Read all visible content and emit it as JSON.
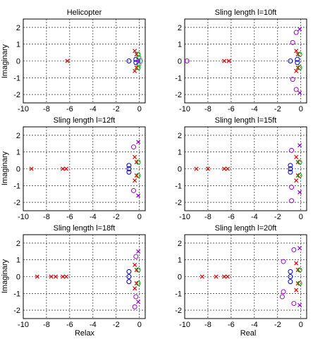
{
  "figure": {
    "y_axis_label": "Imaginary",
    "x_axis_labels": [
      "Relax",
      "Real"
    ]
  },
  "chart_data": [
    {
      "type": "scatter",
      "title": "Helicopter",
      "xlabel": "",
      "ylabel": "Imaginary",
      "xlim": [
        -10,
        0.5
      ],
      "ylim": [
        -2.5,
        2.5
      ],
      "xticks": [
        -10,
        -8,
        -6,
        -4,
        -2,
        0
      ],
      "yticks": [
        -2,
        -1,
        0,
        1,
        2
      ],
      "grid": true,
      "series": [
        {
          "marker": "x",
          "color": "#dd0000",
          "points": [
            [
              -6.2,
              0
            ],
            [
              -0.25,
              0.4
            ],
            [
              -0.25,
              -0.4
            ],
            [
              -0.4,
              0.6
            ],
            [
              -0.4,
              -0.6
            ]
          ]
        },
        {
          "marker": "o",
          "color": "#0000cc",
          "points": [
            [
              -0.9,
              0
            ],
            [
              -0.3,
              0.1
            ],
            [
              -0.3,
              -0.1
            ]
          ]
        },
        {
          "marker": "o",
          "color": "#00aa00",
          "points": [
            [
              -0.1,
              0.4
            ],
            [
              -0.1,
              -0.4
            ],
            [
              -0.05,
              0.2
            ],
            [
              -0.05,
              -0.2
            ]
          ]
        },
        {
          "marker": "x",
          "color": "#9900cc",
          "points": [
            [
              -0.1,
              0.05
            ],
            [
              -0.1,
              -0.05
            ]
          ]
        },
        {
          "marker": "s",
          "color": "#00aacc",
          "points": [
            [
              0.05,
              0
            ]
          ]
        }
      ]
    },
    {
      "type": "scatter",
      "title": "Sling length l=10ft",
      "xlabel": "",
      "ylabel": "",
      "xlim": [
        -10,
        0.5
      ],
      "ylim": [
        -2.5,
        2.5
      ],
      "xticks": [
        -10,
        -8,
        -6,
        -4,
        -2,
        0
      ],
      "yticks": [
        -2,
        -1,
        0,
        1,
        2
      ],
      "grid": true,
      "series": [
        {
          "marker": "x",
          "color": "#dd0000",
          "points": [
            [
              -6.6,
              0
            ],
            [
              -6.2,
              0
            ],
            [
              -0.25,
              0.4
            ],
            [
              -0.25,
              -0.4
            ],
            [
              -0.4,
              0.6
            ],
            [
              -0.4,
              -0.6
            ]
          ]
        },
        {
          "marker": "o",
          "color": "#0000cc",
          "points": [
            [
              -0.9,
              0
            ],
            [
              -0.3,
              0.1
            ],
            [
              -0.3,
              -0.1
            ]
          ]
        },
        {
          "marker": "o",
          "color": "#00aa00",
          "points": [
            [
              -0.1,
              0.4
            ],
            [
              -0.1,
              -0.4
            ]
          ]
        },
        {
          "marker": "x",
          "color": "#9900cc",
          "points": [
            [
              -0.1,
              1.9
            ],
            [
              -0.1,
              -1.9
            ]
          ]
        },
        {
          "marker": "o",
          "color": "#9900cc",
          "points": [
            [
              -9.8,
              0
            ],
            [
              -0.7,
              1.1
            ],
            [
              -0.7,
              -1.1
            ],
            [
              -0.4,
              1.7
            ],
            [
              -0.4,
              -1.7
            ]
          ]
        }
      ]
    },
    {
      "type": "scatter",
      "title": "Sling length l=12ft",
      "xlabel": "",
      "ylabel": "Imaginary",
      "xlim": [
        -10,
        0.5
      ],
      "ylim": [
        -2.5,
        2.5
      ],
      "xticks": [
        -10,
        -8,
        -6,
        -4,
        -2,
        0
      ],
      "yticks": [
        -2,
        -1,
        0,
        1,
        2
      ],
      "grid": true,
      "series": [
        {
          "marker": "x",
          "color": "#dd0000",
          "points": [
            [
              -9.3,
              0
            ],
            [
              -6.6,
              0
            ],
            [
              -6.3,
              0
            ],
            [
              -0.25,
              0.4
            ],
            [
              -0.25,
              -0.4
            ],
            [
              -0.4,
              0.7
            ],
            [
              -0.4,
              -0.7
            ]
          ]
        },
        {
          "marker": "o",
          "color": "#0000cc",
          "points": [
            [
              -0.9,
              0
            ],
            [
              -0.9,
              0.2
            ],
            [
              -0.9,
              -0.2
            ]
          ]
        },
        {
          "marker": "o",
          "color": "#00aa00",
          "points": [
            [
              -0.1,
              0.4
            ],
            [
              -0.1,
              -0.4
            ]
          ]
        },
        {
          "marker": "x",
          "color": "#9900cc",
          "points": [
            [
              -0.1,
              1.6
            ],
            [
              -0.1,
              -1.6
            ]
          ]
        },
        {
          "marker": "o",
          "color": "#9900cc",
          "points": [
            [
              -0.5,
              1.3
            ],
            [
              -0.5,
              -1.3
            ]
          ]
        }
      ]
    },
    {
      "type": "scatter",
      "title": "Sling length l=15ft",
      "xlabel": "",
      "ylabel": "",
      "xlim": [
        -10,
        0.5
      ],
      "ylim": [
        -2.5,
        2.5
      ],
      "xticks": [
        -10,
        -8,
        -6,
        -4,
        -2,
        0
      ],
      "yticks": [
        -2,
        -1,
        0,
        1,
        2
      ],
      "grid": true,
      "series": [
        {
          "marker": "x",
          "color": "#dd0000",
          "points": [
            [
              -9.0,
              0
            ],
            [
              -8.0,
              0
            ],
            [
              -6.6,
              0
            ],
            [
              -6.3,
              0
            ],
            [
              -0.25,
              0.4
            ],
            [
              -0.25,
              -0.4
            ],
            [
              -0.4,
              0.7
            ],
            [
              -0.4,
              -0.7
            ]
          ]
        },
        {
          "marker": "o",
          "color": "#0000cc",
          "points": [
            [
              -0.9,
              0
            ],
            [
              -0.9,
              0.2
            ],
            [
              -0.9,
              -0.2
            ]
          ]
        },
        {
          "marker": "o",
          "color": "#00aa00",
          "points": [
            [
              -0.1,
              0.4
            ],
            [
              -0.1,
              -0.4
            ]
          ]
        },
        {
          "marker": "x",
          "color": "#9900cc",
          "points": [
            [
              -0.1,
              1.4
            ],
            [
              -0.1,
              -1.4
            ]
          ]
        },
        {
          "marker": "o",
          "color": "#9900cc",
          "points": [
            [
              -0.8,
              1.1
            ],
            [
              -0.8,
              -1.1
            ],
            [
              -0.8,
              -1.9
            ]
          ]
        }
      ]
    },
    {
      "type": "scatter",
      "title": "Sling length l=18ft",
      "xlabel": "Relax",
      "ylabel": "Imaginary",
      "xlim": [
        -10,
        0.5
      ],
      "ylim": [
        -2.5,
        2.5
      ],
      "xticks": [
        -10,
        -8,
        -6,
        -4,
        -2,
        0
      ],
      "yticks": [
        -2,
        -1,
        0,
        1,
        2
      ],
      "grid": true,
      "series": [
        {
          "marker": "x",
          "color": "#dd0000",
          "points": [
            [
              -8.8,
              0
            ],
            [
              -7.6,
              0
            ],
            [
              -7.2,
              0
            ],
            [
              -6.6,
              0
            ],
            [
              -6.3,
              0
            ],
            [
              -0.25,
              0.4
            ],
            [
              -0.25,
              -0.4
            ],
            [
              -0.4,
              0.7
            ],
            [
              -0.4,
              -0.7
            ]
          ]
        },
        {
          "marker": "o",
          "color": "#0000cc",
          "points": [
            [
              -0.9,
              0
            ],
            [
              -0.9,
              0.3
            ],
            [
              -0.9,
              -0.3
            ]
          ]
        },
        {
          "marker": "o",
          "color": "#00aa00",
          "points": [
            [
              -0.1,
              0.4
            ],
            [
              -0.1,
              -0.4
            ]
          ]
        },
        {
          "marker": "x",
          "color": "#9900cc",
          "points": [
            [
              -0.1,
              1.5
            ],
            [
              -0.1,
              -1.5
            ]
          ]
        },
        {
          "marker": "o",
          "color": "#9900cc",
          "points": [
            [
              -0.3,
              1.2
            ],
            [
              -0.3,
              -1.2
            ],
            [
              -0.4,
              -1.8
            ]
          ]
        }
      ]
    },
    {
      "type": "scatter",
      "title": "Sling length l=20ft",
      "xlabel": "Real",
      "ylabel": "",
      "xlim": [
        -10,
        0.5
      ],
      "ylim": [
        -2.5,
        2.5
      ],
      "xticks": [
        -10,
        -8,
        -6,
        -4,
        -2,
        0
      ],
      "yticks": [
        -2,
        -1,
        0,
        1,
        2
      ],
      "grid": true,
      "series": [
        {
          "marker": "x",
          "color": "#dd0000",
          "points": [
            [
              -8.5,
              0
            ],
            [
              -7.3,
              0
            ],
            [
              -6.6,
              0
            ],
            [
              -6.3,
              0
            ],
            [
              -0.25,
              0.4
            ],
            [
              -0.25,
              -0.4
            ],
            [
              -0.4,
              0.8
            ],
            [
              -0.4,
              -0.8
            ]
          ]
        },
        {
          "marker": "o",
          "color": "#0000cc",
          "points": [
            [
              -0.9,
              0
            ],
            [
              -0.9,
              0.3
            ],
            [
              -0.9,
              -0.3
            ]
          ]
        },
        {
          "marker": "o",
          "color": "#00aa00",
          "points": [
            [
              -0.1,
              0.4
            ],
            [
              -0.1,
              -0.4
            ]
          ]
        },
        {
          "marker": "x",
          "color": "#9900cc",
          "points": [
            [
              -0.1,
              1.7
            ],
            [
              -0.1,
              -1.7
            ]
          ]
        },
        {
          "marker": "o",
          "color": "#9900cc",
          "points": [
            [
              -1.5,
              0.9
            ],
            [
              -1.5,
              -0.9
            ],
            [
              -1.6,
              -1.2
            ],
            [
              -0.6,
              1.6
            ],
            [
              -0.6,
              -1.6
            ]
          ]
        }
      ]
    }
  ]
}
